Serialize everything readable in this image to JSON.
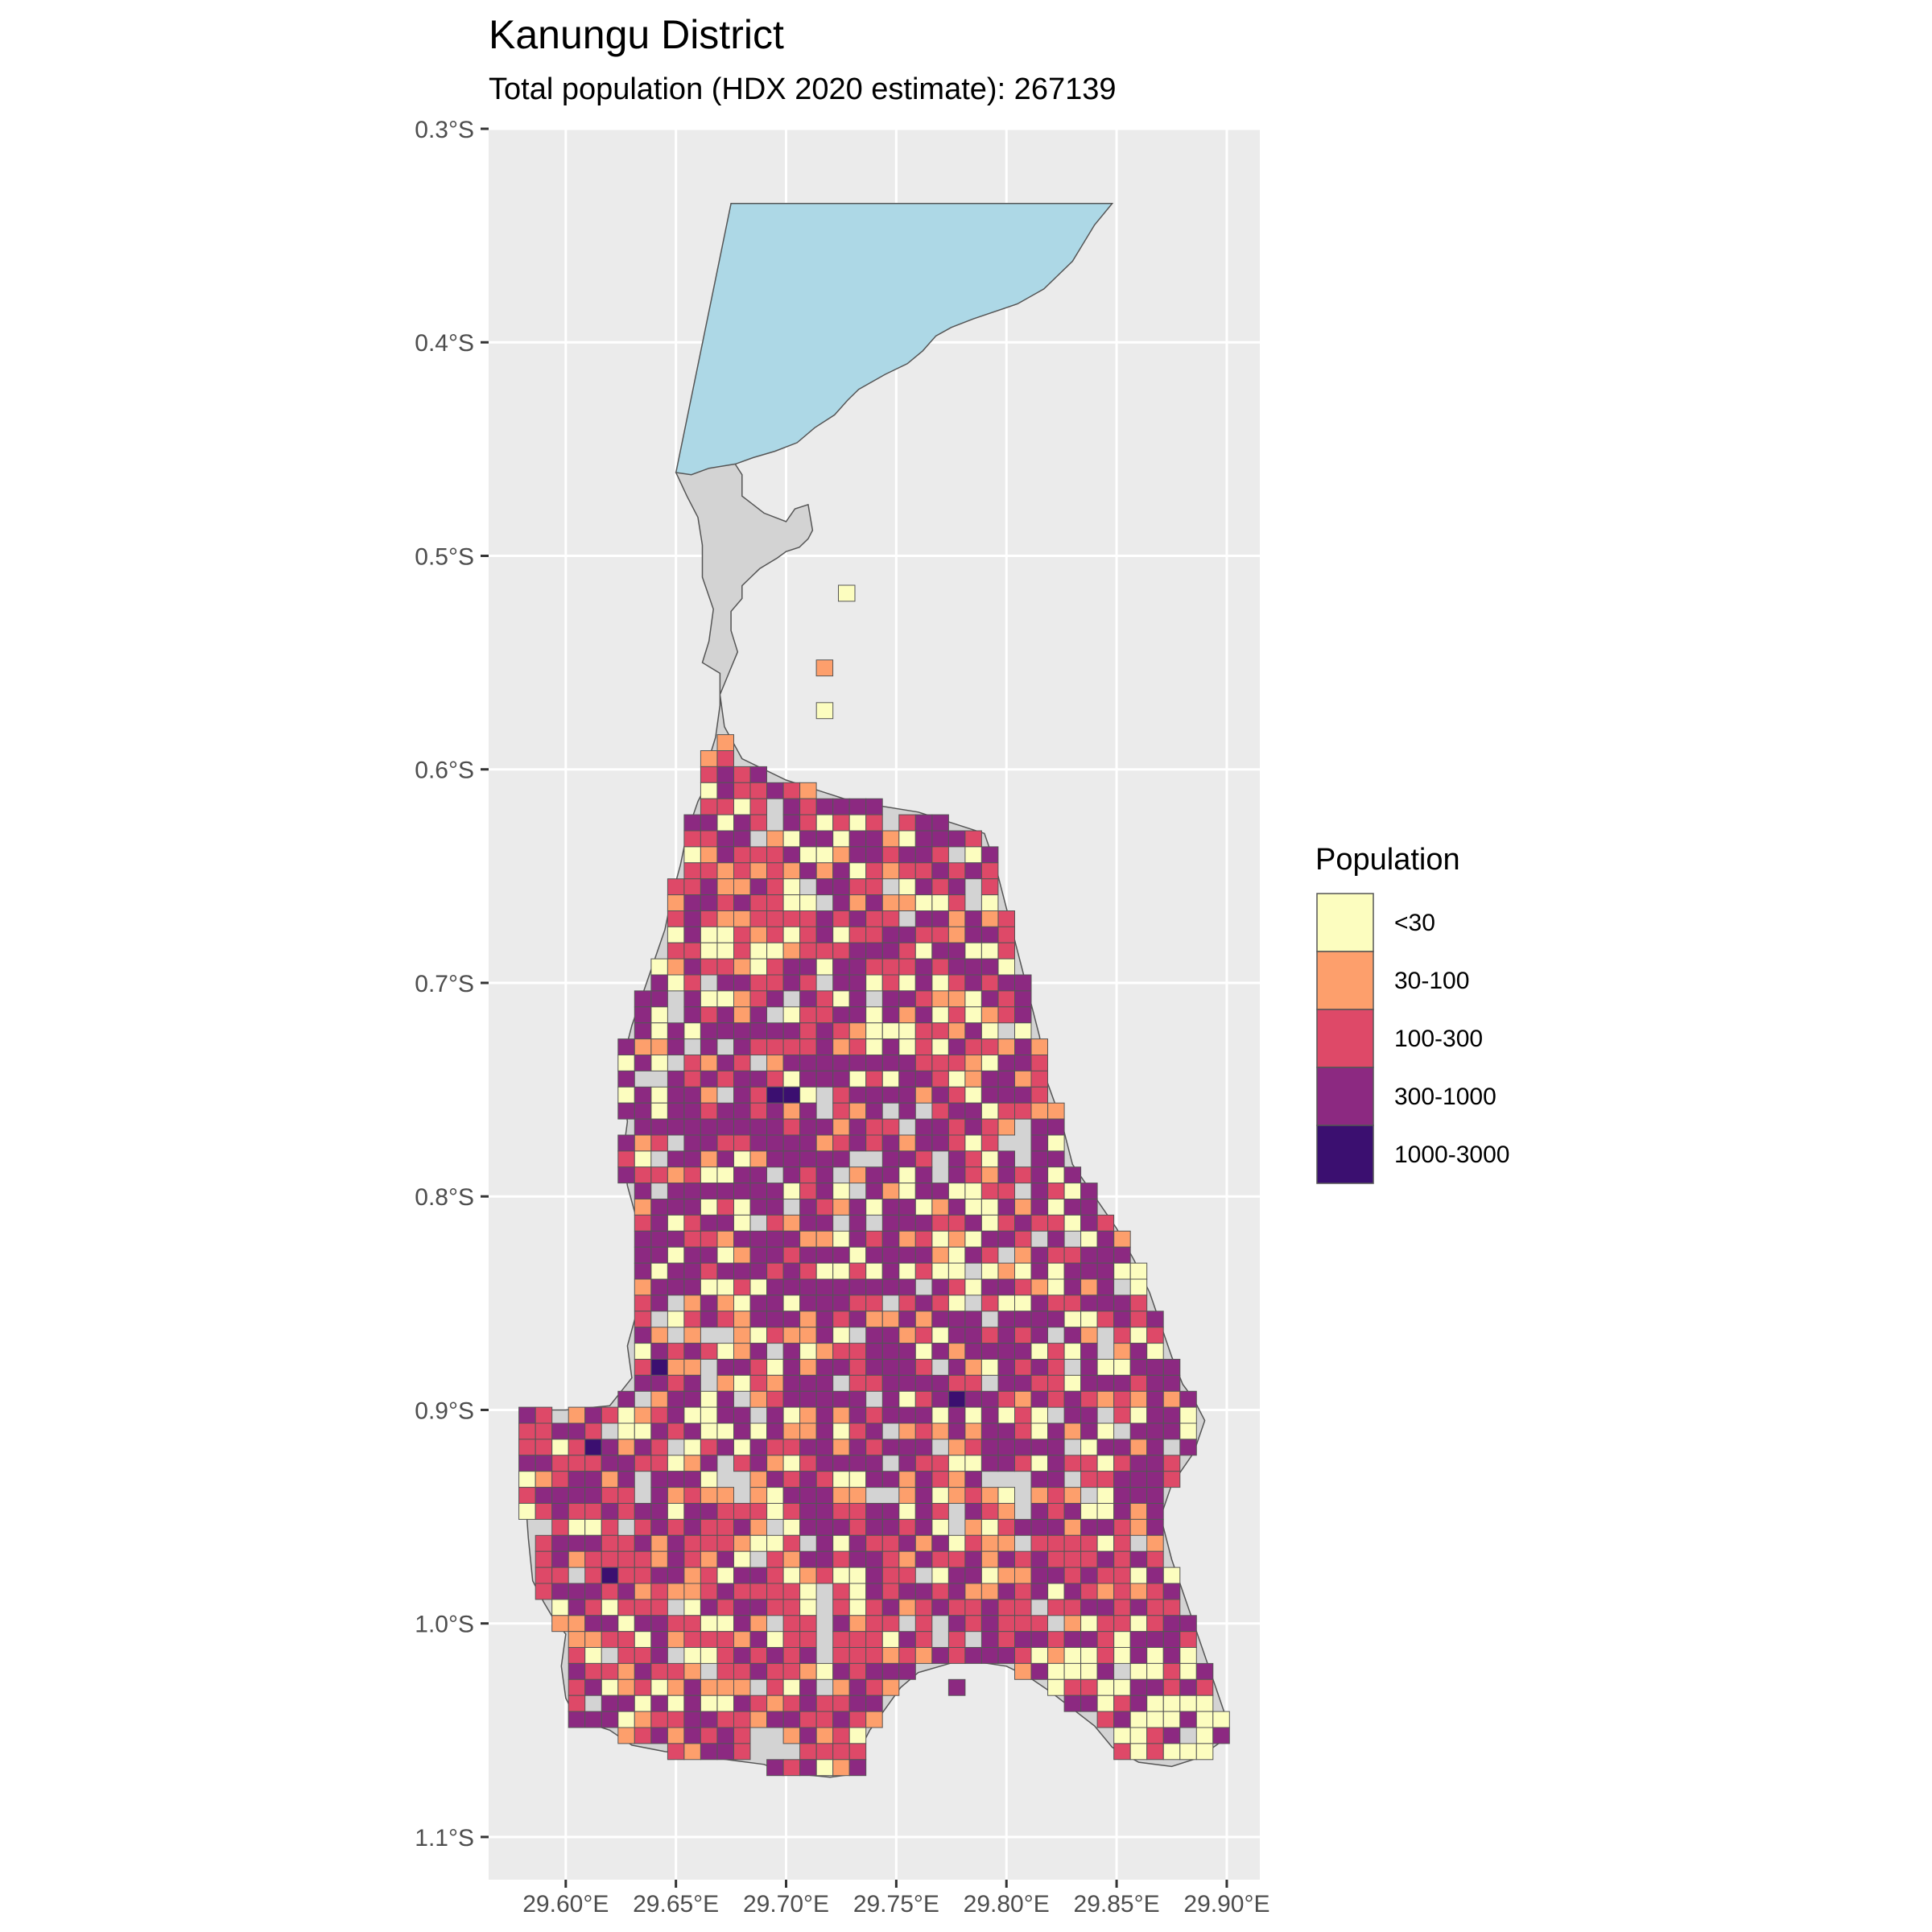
{
  "title": "Kanungu District",
  "subtitle": "Total population (HDX 2020 estimate): 267139",
  "chart_data": {
    "type": "choropleth-grid-map",
    "region": "Kanungu District",
    "x_axis": {
      "unit": "degrees East",
      "range": [
        29.565,
        29.915
      ],
      "ticks": [
        {
          "value": 29.6,
          "label": "29.60°E"
        },
        {
          "value": 29.65,
          "label": "29.65°E"
        },
        {
          "value": 29.7,
          "label": "29.70°E"
        },
        {
          "value": 29.75,
          "label": "29.75°E"
        },
        {
          "value": 29.8,
          "label": "29.80°E"
        },
        {
          "value": 29.85,
          "label": "29.85°E"
        },
        {
          "value": 29.9,
          "label": "29.90°E"
        }
      ]
    },
    "y_axis": {
      "unit": "degrees South",
      "range": [
        0.3,
        1.12
      ],
      "ticks": [
        {
          "value": 0.3,
          "label": "0.3°S"
        },
        {
          "value": 0.4,
          "label": "0.4°S"
        },
        {
          "value": 0.5,
          "label": "0.5°S"
        },
        {
          "value": 0.6,
          "label": "0.6°S"
        },
        {
          "value": 0.7,
          "label": "0.7°S"
        },
        {
          "value": 0.8,
          "label": "0.8°S"
        },
        {
          "value": 0.9,
          "label": "0.9°S"
        },
        {
          "value": 1.0,
          "label": "1.0°S"
        },
        {
          "value": 1.1,
          "label": "1.1°S"
        }
      ]
    },
    "grid": true,
    "panel_background": "#ebebeb",
    "district_fill": "#d3d3d3",
    "lake_fill": "#add8e6",
    "lake_outline_lon_lat": [
      [
        29.675,
        0.335
      ],
      [
        29.848,
        0.335
      ],
      [
        29.84,
        0.345
      ],
      [
        29.83,
        0.362
      ],
      [
        29.817,
        0.375
      ],
      [
        29.805,
        0.382
      ],
      [
        29.785,
        0.389
      ],
      [
        29.775,
        0.393
      ],
      [
        29.768,
        0.397
      ],
      [
        29.762,
        0.404
      ],
      [
        29.755,
        0.41
      ],
      [
        29.745,
        0.415
      ],
      [
        29.733,
        0.422
      ],
      [
        29.728,
        0.427
      ],
      [
        29.722,
        0.434
      ],
      [
        29.713,
        0.44
      ],
      [
        29.705,
        0.447
      ],
      [
        29.695,
        0.451
      ],
      [
        29.685,
        0.454
      ],
      [
        29.677,
        0.457
      ],
      [
        29.665,
        0.459
      ],
      [
        29.657,
        0.462
      ],
      [
        29.65,
        0.461
      ],
      [
        29.675,
        0.335
      ]
    ],
    "district_outline_lon_lat": [
      [
        29.65,
        0.461
      ],
      [
        29.668,
        0.458
      ],
      [
        29.675,
        0.454
      ],
      [
        29.68,
        0.462
      ],
      [
        29.68,
        0.472
      ],
      [
        29.685,
        0.476
      ],
      [
        29.69,
        0.48
      ],
      [
        29.695,
        0.482
      ],
      [
        29.7,
        0.484
      ],
      [
        29.704,
        0.478
      ],
      [
        29.71,
        0.476
      ],
      [
        29.712,
        0.488
      ],
      [
        29.71,
        0.492
      ],
      [
        29.706,
        0.496
      ],
      [
        29.7,
        0.498
      ],
      [
        29.696,
        0.501
      ],
      [
        29.688,
        0.506
      ],
      [
        29.684,
        0.51
      ],
      [
        29.68,
        0.514
      ],
      [
        29.68,
        0.52
      ],
      [
        29.675,
        0.526
      ],
      [
        29.675,
        0.535
      ],
      [
        29.678,
        0.545
      ],
      [
        29.674,
        0.555
      ],
      [
        29.67,
        0.565
      ],
      [
        29.672,
        0.58
      ],
      [
        29.68,
        0.595
      ],
      [
        29.7,
        0.605
      ],
      [
        29.73,
        0.615
      ],
      [
        29.76,
        0.62
      ],
      [
        29.79,
        0.63
      ],
      [
        29.795,
        0.645
      ],
      [
        29.8,
        0.665
      ],
      [
        29.805,
        0.685
      ],
      [
        29.81,
        0.705
      ],
      [
        29.815,
        0.725
      ],
      [
        29.818,
        0.745
      ],
      [
        29.825,
        0.765
      ],
      [
        29.83,
        0.785
      ],
      [
        29.84,
        0.8
      ],
      [
        29.85,
        0.815
      ],
      [
        29.858,
        0.83
      ],
      [
        29.865,
        0.845
      ],
      [
        29.87,
        0.86
      ],
      [
        29.875,
        0.875
      ],
      [
        29.88,
        0.888
      ],
      [
        29.885,
        0.895
      ],
      [
        29.89,
        0.905
      ],
      [
        29.885,
        0.92
      ],
      [
        29.875,
        0.935
      ],
      [
        29.87,
        0.95
      ],
      [
        29.875,
        0.97
      ],
      [
        29.88,
        0.985
      ],
      [
        29.885,
        1.0
      ],
      [
        29.89,
        1.015
      ],
      [
        29.895,
        1.03
      ],
      [
        29.9,
        1.045
      ],
      [
        29.898,
        1.055
      ],
      [
        29.887,
        1.063
      ],
      [
        29.875,
        1.067
      ],
      [
        29.86,
        1.065
      ],
      [
        29.848,
        1.058
      ],
      [
        29.84,
        1.048
      ],
      [
        29.83,
        1.04
      ],
      [
        29.82,
        1.032
      ],
      [
        29.81,
        1.025
      ],
      [
        29.8,
        1.02
      ],
      [
        29.78,
        1.017
      ],
      [
        29.77,
        1.02
      ],
      [
        29.76,
        1.023
      ],
      [
        29.752,
        1.03
      ],
      [
        29.745,
        1.04
      ],
      [
        29.738,
        1.05
      ],
      [
        29.733,
        1.06
      ],
      [
        29.735,
        1.07
      ],
      [
        29.72,
        1.072
      ],
      [
        29.7,
        1.07
      ],
      [
        29.69,
        1.066
      ],
      [
        29.675,
        1.064
      ],
      [
        29.66,
        1.062
      ],
      [
        29.645,
        1.06
      ],
      [
        29.63,
        1.057
      ],
      [
        29.62,
        1.05
      ],
      [
        29.605,
        1.045
      ],
      [
        29.6,
        1.035
      ],
      [
        29.598,
        1.02
      ],
      [
        29.6,
        1.005
      ],
      [
        29.594,
        0.997
      ],
      [
        29.59,
        0.99
      ],
      [
        29.585,
        0.98
      ],
      [
        29.583,
        0.96
      ],
      [
        29.582,
        0.945
      ],
      [
        29.58,
        0.93
      ],
      [
        29.58,
        0.9
      ],
      [
        29.6,
        0.9
      ],
      [
        29.62,
        0.898
      ],
      [
        29.63,
        0.885
      ],
      [
        29.628,
        0.87
      ],
      [
        29.632,
        0.855
      ],
      [
        29.635,
        0.84
      ],
      [
        29.634,
        0.825
      ],
      [
        29.632,
        0.81
      ],
      [
        29.628,
        0.795
      ],
      [
        29.626,
        0.78
      ],
      [
        29.628,
        0.765
      ],
      [
        29.625,
        0.74
      ],
      [
        29.63,
        0.72
      ],
      [
        29.635,
        0.705
      ],
      [
        29.64,
        0.69
      ],
      [
        29.645,
        0.675
      ],
      [
        29.648,
        0.66
      ],
      [
        29.652,
        0.645
      ],
      [
        29.655,
        0.63
      ],
      [
        29.66,
        0.615
      ],
      [
        29.665,
        0.605
      ],
      [
        29.665,
        0.595
      ],
      [
        29.668,
        0.585
      ],
      [
        29.67,
        0.57
      ],
      [
        29.67,
        0.555
      ],
      [
        29.662,
        0.55
      ],
      [
        29.665,
        0.54
      ],
      [
        29.667,
        0.525
      ],
      [
        29.662,
        0.51
      ],
      [
        29.662,
        0.495
      ],
      [
        29.66,
        0.482
      ],
      [
        29.655,
        0.472
      ],
      [
        29.65,
        0.461
      ]
    ],
    "cell_size_deg": 0.0075,
    "legend": {
      "title": "Population",
      "position": "right",
      "classes": [
        {
          "label": "<30",
          "color": "#fcfdbf"
        },
        {
          "label": "30-100",
          "color": "#fd9f6c"
        },
        {
          "label": "100-300",
          "color": "#de4968"
        },
        {
          "label": "300-1000",
          "color": "#8c2981"
        },
        {
          "label": "1000-3000",
          "color": "#3b0f70"
        }
      ]
    },
    "grid_cells_sample": [
      {
        "lon": 29.7275,
        "lat": 0.5175,
        "class": "<30"
      },
      {
        "lon": 29.7175,
        "lat": 0.5525,
        "class": "30-100"
      },
      {
        "lon": 29.7175,
        "lat": 0.5725,
        "class": "<30"
      },
      {
        "lon": 29.6975,
        "lat": 0.6275,
        "class": "<30"
      },
      {
        "lon": 29.6625,
        "lat": 0.6175,
        "class": "100-300"
      },
      {
        "lon": 29.7025,
        "lat": 0.7525,
        "class": "1000-3000"
      },
      {
        "lon": 29.6925,
        "lat": 0.7525,
        "class": "1000-3000"
      },
      {
        "lon": 29.7775,
        "lat": 0.8925,
        "class": "1000-3000"
      },
      {
        "lon": 29.6375,
        "lat": 0.8775,
        "class": "1000-3000"
      },
      {
        "lon": 29.6075,
        "lat": 0.9125,
        "class": "1000-3000"
      },
      {
        "lon": 29.6175,
        "lat": 0.9775,
        "class": "1000-3000"
      },
      {
        "lon": 29.7775,
        "lat": 1.0275,
        "class": "300-1000"
      }
    ]
  }
}
